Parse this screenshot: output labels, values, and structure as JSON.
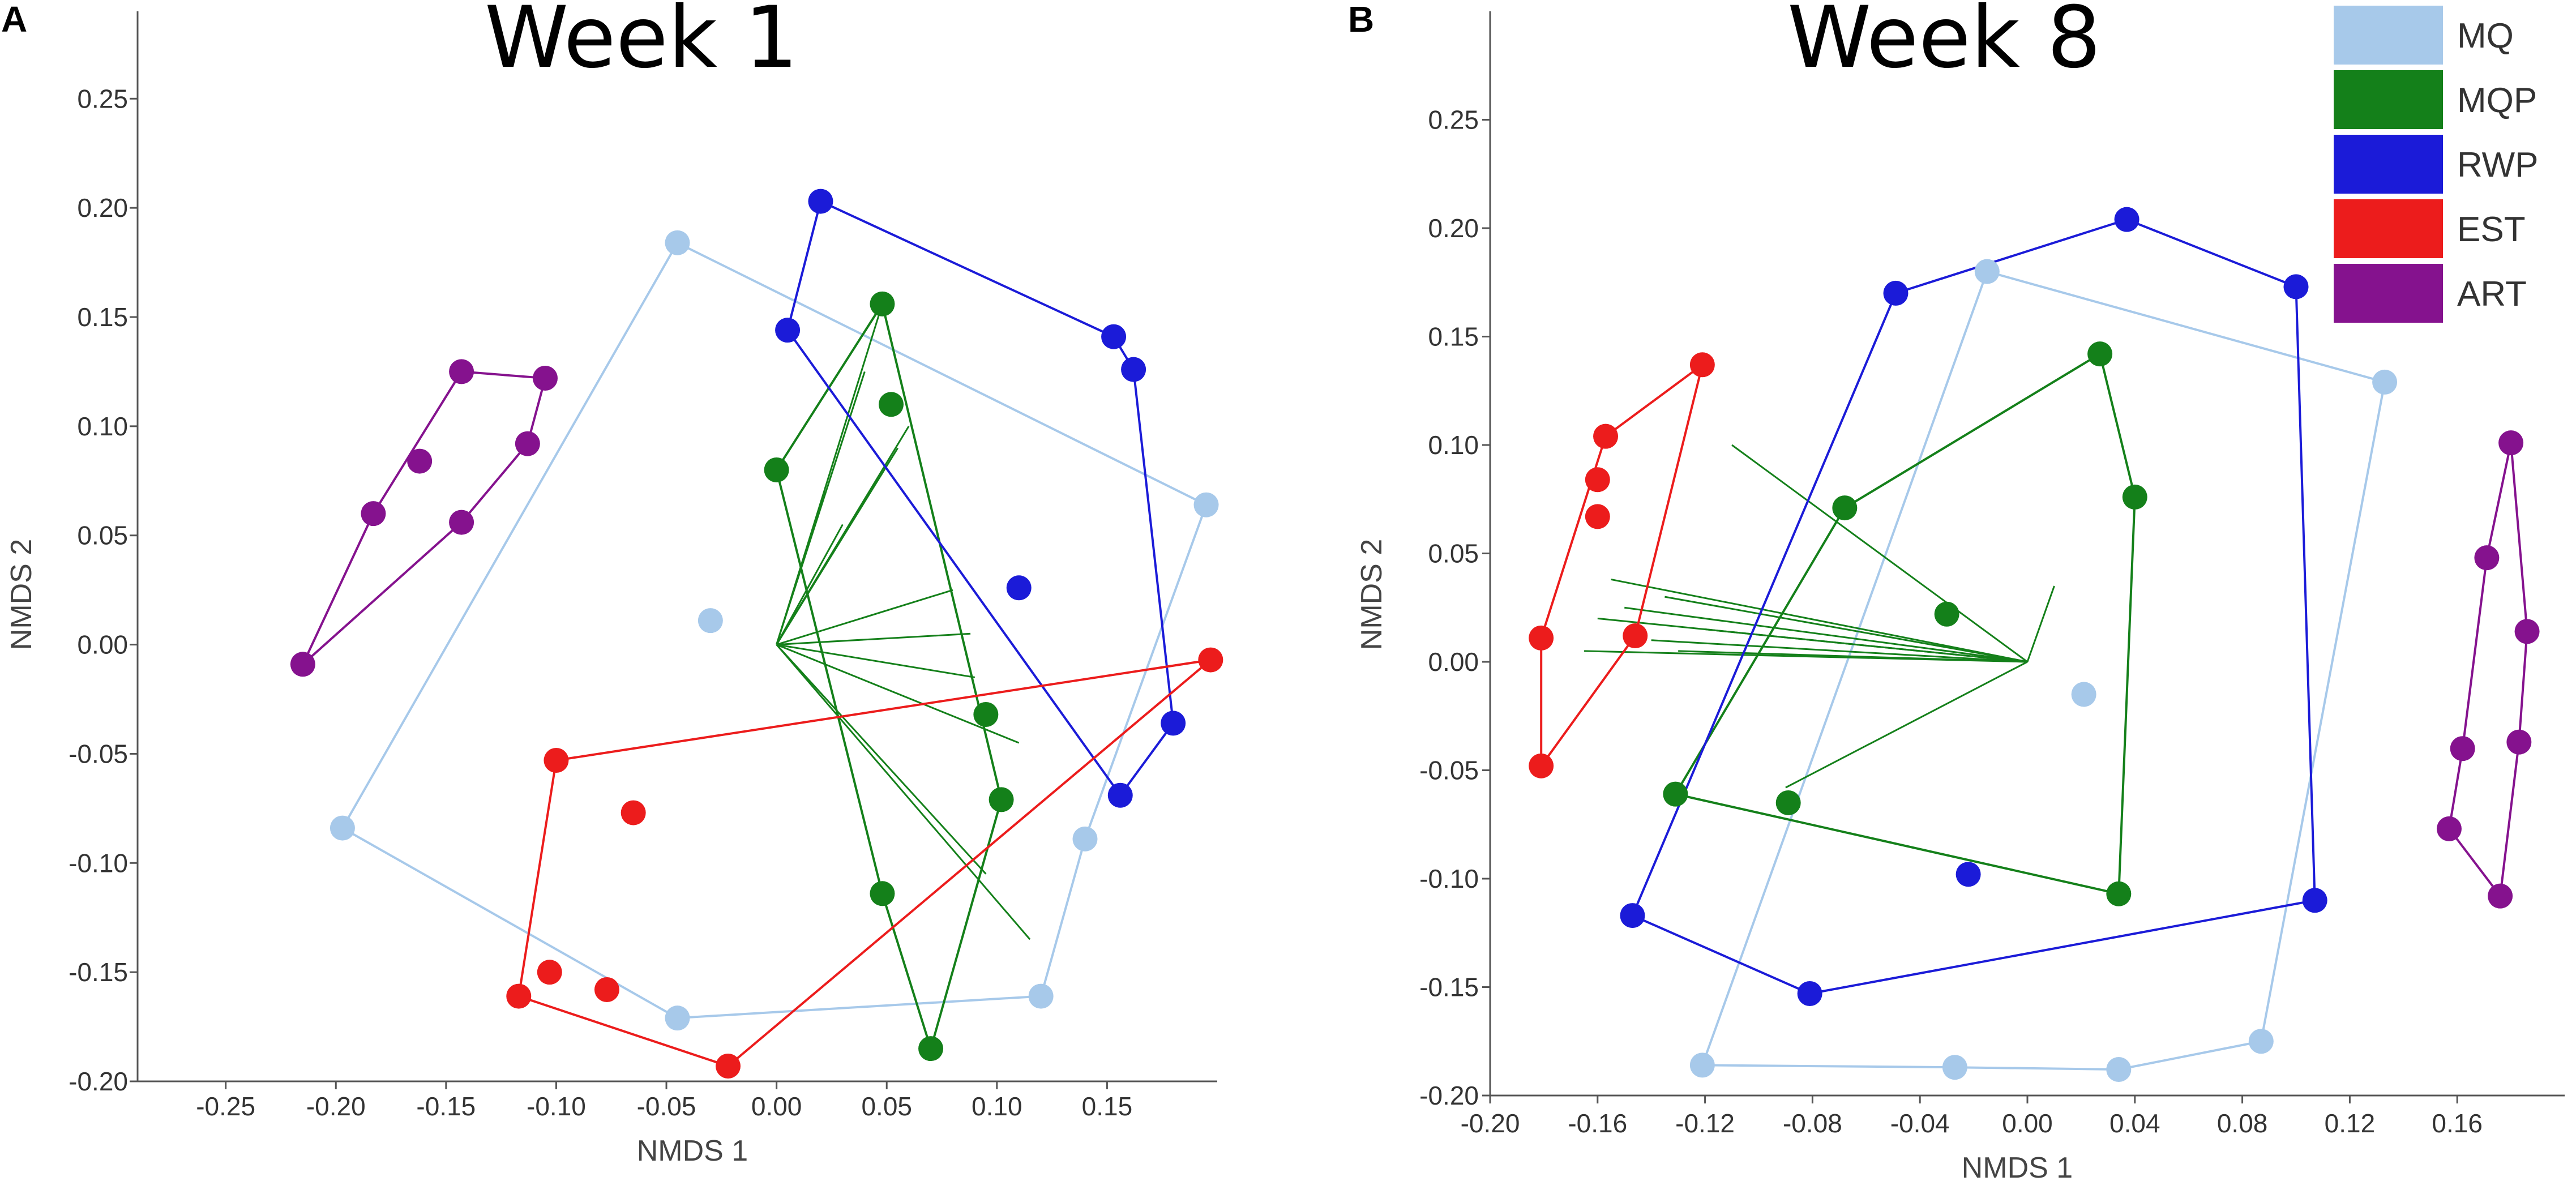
{
  "chart_data": [
    {
      "type": "scatter",
      "panel_label": "A",
      "title": "Week 1",
      "xlabel": "NMDS 1",
      "ylabel": "NMDS 2",
      "xlim": [
        -0.29,
        0.2
      ],
      "ylim": [
        -0.2,
        0.29
      ],
      "xticks": [
        -0.25,
        -0.2,
        -0.15,
        -0.1,
        -0.05,
        0.0,
        0.05,
        0.1,
        0.15
      ],
      "xtick_labels": [
        "-0.25",
        "-0.20",
        "-0.15",
        "-0.10",
        "-0.05",
        "0.00",
        "0.05",
        "0.10",
        "0.15"
      ],
      "yticks": [
        0.25,
        0.2,
        0.15,
        0.1,
        0.05,
        0.0,
        -0.05,
        -0.1,
        -0.15,
        -0.2
      ],
      "ytick_labels": [
        "0.25",
        "0.20",
        "0.15",
        "0.10",
        "0.05",
        "0.00",
        "-0.05",
        "-0.10",
        "-0.15",
        "-0.20"
      ],
      "series": [
        {
          "name": "MQ",
          "color": "#a7c9ea",
          "points": [
            [
              -0.045,
              0.184
            ],
            [
              0.195,
              0.064
            ],
            [
              0.14,
              -0.089
            ],
            [
              0.12,
              -0.161
            ],
            [
              -0.045,
              -0.171
            ],
            [
              -0.197,
              -0.084
            ],
            [
              -0.03,
              0.011
            ]
          ],
          "hull": [
            [
              -0.045,
              0.184
            ],
            [
              0.195,
              0.064
            ],
            [
              0.14,
              -0.089
            ],
            [
              0.12,
              -0.161
            ],
            [
              -0.045,
              -0.171
            ],
            [
              -0.197,
              -0.084
            ]
          ],
          "spider": null
        },
        {
          "name": "MQP",
          "color": "#14801a",
          "points": [
            [
              0.048,
              0.156
            ],
            [
              0.052,
              0.11
            ],
            [
              0.0,
              0.08
            ],
            [
              0.095,
              -0.032
            ],
            [
              0.102,
              -0.071
            ],
            [
              0.048,
              -0.114
            ],
            [
              0.07,
              -0.185
            ]
          ],
          "hull": [
            [
              0.048,
              0.156
            ],
            [
              0.102,
              -0.071
            ],
            [
              0.07,
              -0.185
            ],
            [
              0.048,
              -0.114
            ],
            [
              0.0,
              0.08
            ]
          ],
          "spider": {
            "centroid": [
              0.0,
              0.0
            ],
            "ends": [
              [
                0.048,
                0.156
              ],
              [
                0.04,
                0.125
              ],
              [
                0.055,
                0.09
              ],
              [
                0.03,
                0.055
              ],
              [
                0.08,
                0.025
              ],
              [
                0.09,
                -0.015
              ],
              [
                0.11,
                -0.045
              ],
              [
                0.095,
                -0.105
              ],
              [
                0.115,
                -0.135
              ],
              [
                0.06,
                0.1
              ],
              [
                0.088,
                0.005
              ],
              [
                0.022,
                0.07
              ]
            ]
          }
        },
        {
          "name": "RWP",
          "color": "#1b1bd8",
          "points": [
            [
              0.02,
              0.203
            ],
            [
              0.153,
              0.141
            ],
            [
              0.162,
              0.126
            ],
            [
              0.005,
              0.144
            ],
            [
              0.11,
              0.026
            ],
            [
              0.18,
              -0.036
            ],
            [
              0.156,
              -0.069
            ]
          ],
          "hull": [
            [
              0.02,
              0.203
            ],
            [
              0.153,
              0.141
            ],
            [
              0.162,
              0.126
            ],
            [
              0.18,
              -0.036
            ],
            [
              0.156,
              -0.069
            ],
            [
              0.005,
              0.144
            ]
          ],
          "spider": null
        },
        {
          "name": "EST",
          "color": "#ec1c1c",
          "points": [
            [
              0.197,
              -0.007
            ],
            [
              -0.1,
              -0.053
            ],
            [
              -0.065,
              -0.077
            ],
            [
              -0.103,
              -0.15
            ],
            [
              -0.077,
              -0.158
            ],
            [
              -0.117,
              -0.161
            ],
            [
              -0.022,
              -0.193
            ]
          ],
          "hull": [
            [
              0.197,
              -0.007
            ],
            [
              -0.022,
              -0.193
            ],
            [
              -0.117,
              -0.161
            ],
            [
              -0.1,
              -0.053
            ]
          ],
          "spider": null
        },
        {
          "name": "ART",
          "color": "#85128e",
          "points": [
            [
              -0.143,
              0.125
            ],
            [
              -0.105,
              0.122
            ],
            [
              -0.113,
              0.092
            ],
            [
              -0.162,
              0.084
            ],
            [
              -0.183,
              0.06
            ],
            [
              -0.143,
              0.056
            ],
            [
              -0.215,
              -0.009
            ]
          ],
          "hull": [
            [
              -0.143,
              0.125
            ],
            [
              -0.105,
              0.122
            ],
            [
              -0.113,
              0.092
            ],
            [
              -0.143,
              0.056
            ],
            [
              -0.215,
              -0.009
            ],
            [
              -0.183,
              0.06
            ]
          ],
          "spider": null
        }
      ]
    },
    {
      "type": "scatter",
      "panel_label": "B",
      "title": "Week 8",
      "xlabel": "NMDS 1",
      "ylabel": "NMDS 2",
      "xlim": [
        -0.2,
        0.2
      ],
      "ylim": [
        -0.2,
        0.3
      ],
      "xticks": [
        -0.2,
        -0.16,
        -0.12,
        -0.08,
        -0.04,
        0.0,
        0.04,
        0.08,
        0.12,
        0.16
      ],
      "xtick_labels": [
        "-0.20",
        "-0.16",
        "-0.12",
        "-0.08",
        "-0.04",
        "0.00",
        "0.04",
        "0.08",
        "0.12",
        "0.16"
      ],
      "yticks": [
        0.25,
        0.2,
        0.15,
        0.1,
        0.05,
        0.0,
        -0.05,
        -0.1,
        -0.15,
        -0.2
      ],
      "ytick_labels": [
        "0.25",
        "0.20",
        "0.15",
        "0.10",
        "0.05",
        "0.00",
        "-0.05",
        "-0.10",
        "-0.15",
        "-0.20"
      ],
      "series": [
        {
          "name": "MQ",
          "color": "#a7c9ea",
          "points": [
            [
              -0.015,
              0.18
            ],
            [
              0.133,
              0.129
            ],
            [
              0.087,
              -0.175
            ],
            [
              0.034,
              -0.188
            ],
            [
              -0.027,
              -0.187
            ],
            [
              -0.121,
              -0.186
            ],
            [
              0.021,
              -0.015
            ]
          ],
          "hull": [
            [
              -0.015,
              0.18
            ],
            [
              0.133,
              0.129
            ],
            [
              0.087,
              -0.175
            ],
            [
              0.034,
              -0.188
            ],
            [
              -0.027,
              -0.187
            ],
            [
              -0.121,
              -0.186
            ]
          ],
          "spider": null
        },
        {
          "name": "MQP",
          "color": "#14801a",
          "points": [
            [
              0.027,
              0.142
            ],
            [
              0.04,
              0.076
            ],
            [
              -0.068,
              0.071
            ],
            [
              -0.03,
              0.022
            ],
            [
              -0.131,
              -0.061
            ],
            [
              -0.089,
              -0.065
            ],
            [
              0.034,
              -0.107
            ]
          ],
          "hull": [
            [
              0.027,
              0.142
            ],
            [
              0.04,
              0.076
            ],
            [
              0.034,
              -0.107
            ],
            [
              -0.131,
              -0.061
            ],
            [
              -0.068,
              0.071
            ]
          ],
          "spider": {
            "centroid": [
              0.0,
              0.0
            ],
            "ends": [
              [
                -0.11,
                0.1
              ],
              [
                -0.155,
                0.038
              ],
              [
                -0.16,
                0.02
              ],
              [
                -0.165,
                0.005
              ],
              [
                -0.15,
                0.025
              ],
              [
                -0.14,
                0.01
              ],
              [
                -0.135,
                0.03
              ],
              [
                -0.12,
                0.015
              ],
              [
                -0.13,
                0.005
              ],
              [
                0.01,
                0.035
              ],
              [
                -0.09,
                -0.058
              ]
            ]
          }
        },
        {
          "name": "RWP",
          "color": "#1b1bd8",
          "points": [
            [
              -0.049,
              0.17
            ],
            [
              0.037,
              0.204
            ],
            [
              0.1,
              0.173
            ],
            [
              -0.147,
              -0.117
            ],
            [
              -0.081,
              -0.153
            ],
            [
              0.107,
              -0.11
            ],
            [
              -0.022,
              -0.098
            ]
          ],
          "hull": [
            [
              -0.049,
              0.17
            ],
            [
              0.037,
              0.204
            ],
            [
              0.1,
              0.173
            ],
            [
              0.107,
              -0.11
            ],
            [
              -0.081,
              -0.153
            ],
            [
              -0.147,
              -0.117
            ]
          ],
          "spider": null
        },
        {
          "name": "EST",
          "color": "#ec1c1c",
          "points": [
            [
              -0.121,
              0.137
            ],
            [
              -0.157,
              0.104
            ],
            [
              -0.16,
              0.084
            ],
            [
              -0.16,
              0.067
            ],
            [
              -0.146,
              0.012
            ],
            [
              -0.181,
              0.011
            ],
            [
              -0.181,
              -0.048
            ]
          ],
          "hull": [
            [
              -0.121,
              0.137
            ],
            [
              -0.146,
              0.012
            ],
            [
              -0.181,
              -0.048
            ],
            [
              -0.181,
              0.011
            ],
            [
              -0.157,
              0.104
            ]
          ],
          "spider": null
        },
        {
          "name": "ART",
          "color": "#85128e",
          "points": [
            [
              0.18,
              0.101
            ],
            [
              0.171,
              0.048
            ],
            [
              0.186,
              0.014
            ],
            [
              0.183,
              -0.037
            ],
            [
              0.162,
              -0.04
            ],
            [
              0.157,
              -0.077
            ],
            [
              0.176,
              -0.108
            ]
          ],
          "hull": [
            [
              0.18,
              0.101
            ],
            [
              0.186,
              0.014
            ],
            [
              0.183,
              -0.037
            ],
            [
              0.176,
              -0.108
            ],
            [
              0.157,
              -0.077
            ],
            [
              0.162,
              -0.04
            ],
            [
              0.171,
              0.048
            ]
          ],
          "spider": null
        }
      ]
    }
  ],
  "legend": {
    "placement": "top-right",
    "items": [
      {
        "label": "MQ",
        "color": "#a7c9ea"
      },
      {
        "label": "MQP",
        "color": "#14801a"
      },
      {
        "label": "RWP",
        "color": "#1b1bd8"
      },
      {
        "label": "EST",
        "color": "#ec1c1c"
      },
      {
        "label": "ART",
        "color": "#85128e"
      }
    ]
  }
}
